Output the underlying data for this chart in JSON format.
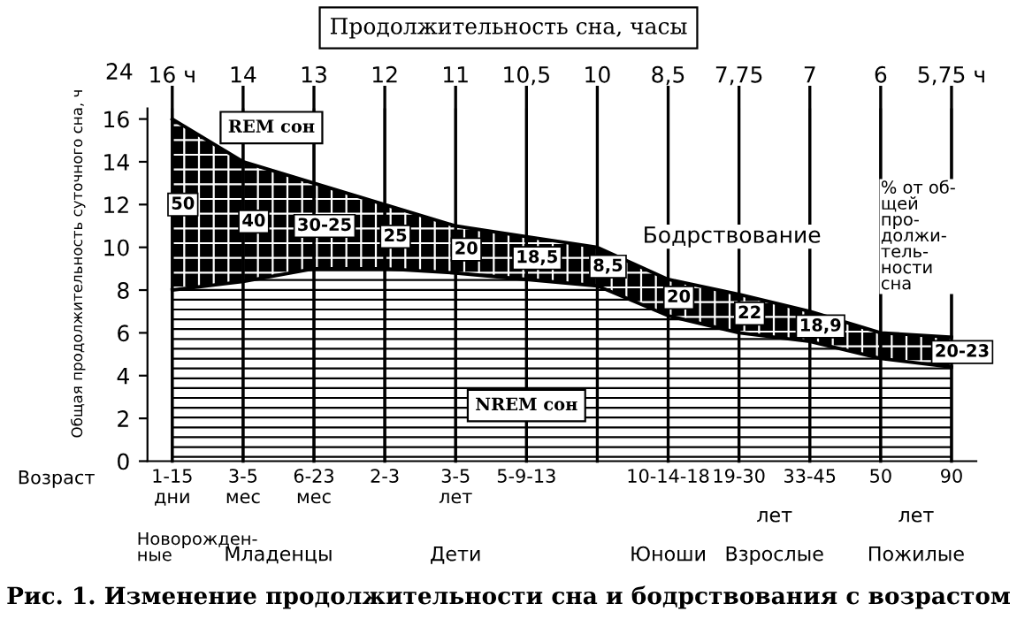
{
  "chart_data": {
    "type": "area",
    "stacked": true,
    "title": "Продолжительность сна, часы",
    "xlabel": "Возраст",
    "ylabel": "Общая продолжительность суточного сна, ч",
    "categories": [
      "1-15\nдни",
      "3-5\nмес",
      "6-23\nмес",
      "2-3",
      "3-5\nлет",
      "5-9-13",
      null,
      "10-14-18",
      "19-30",
      "33-45",
      "50",
      "90"
    ],
    "series": [
      {
        "name": "NREM сон",
        "color": "#ffffff",
        "values": [
          8,
          8.4,
          9,
          9,
          8.8,
          8.5,
          8.2,
          6.8,
          6,
          5.6,
          4.8,
          4.4
        ]
      },
      {
        "name": "REM сон",
        "color": "#000000",
        "values": [
          8,
          5.6,
          4,
          3,
          2.2,
          2,
          1.8,
          1.7,
          1.8,
          1.4,
          1.2,
          1.4
        ]
      }
    ],
    "ylim": [
      0,
      16.5
    ],
    "yticks": [
      0,
      2,
      4,
      6,
      8,
      10,
      12,
      14,
      16
    ],
    "grid": "x",
    "annotations": [
      "16 ч",
      "14",
      "13",
      "12",
      "11",
      "10,5",
      "10",
      "8,5",
      "7,75",
      "7",
      "6",
      "5,75 ч",
      "50",
      "40",
      "30-25",
      "25",
      "20",
      "18,5",
      "8,5",
      "20",
      "22",
      "18,9",
      "20-23",
      "24",
      "Бодрствование",
      "% от об-\nщей\nпро-\nдолжи-\nтель-\nности\nсна",
      "Новорожден-\nные",
      "Младенцы",
      "Дети",
      "Юноши",
      "Взрослые",
      "Пожилые",
      "лет",
      "лет",
      "Рис. 1. Изменение продолжительности сна и бодрствования с возрастом"
    ]
  }
}
